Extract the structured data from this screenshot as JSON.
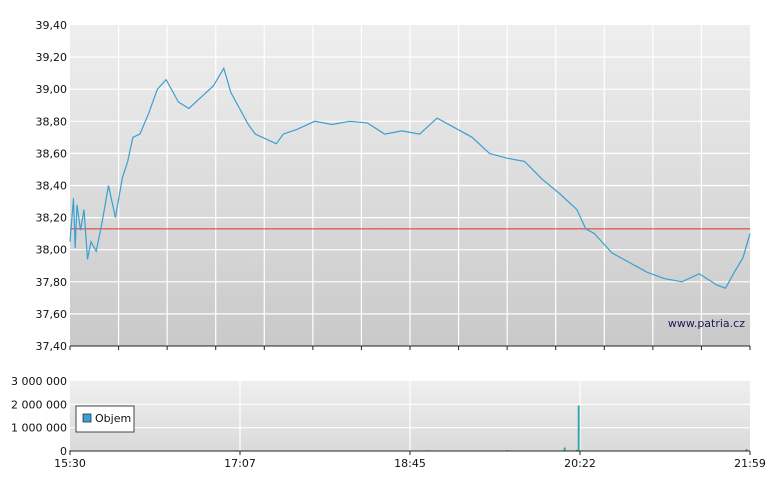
{
  "watermark": "www.patria.cz",
  "chart_data": [
    {
      "type": "line",
      "title": "",
      "xlabel": "",
      "ylabel": "",
      "ylim": [
        37.4,
        39.4
      ],
      "y_ticks": [
        "39,40",
        "39,20",
        "39,00",
        "38,80",
        "38,60",
        "38,40",
        "38,20",
        "38,00",
        "37,80",
        "37,60",
        "37,40"
      ],
      "x_ticks": [
        "15:30",
        "17:07",
        "18:45",
        "20:22",
        "21:59"
      ],
      "grid": true,
      "line_color": "#3aa0d0",
      "reference_line": {
        "value": 38.13,
        "color": "#e03030"
      },
      "x": [
        "15:30",
        "15:32",
        "15:33",
        "15:34",
        "15:36",
        "15:38",
        "15:40",
        "15:42",
        "15:45",
        "15:48",
        "15:52",
        "15:56",
        "16:00",
        "16:03",
        "16:06",
        "16:10",
        "16:15",
        "16:20",
        "16:25",
        "16:32",
        "16:38",
        "16:45",
        "16:52",
        "16:58",
        "17:02",
        "17:07",
        "17:12",
        "17:16",
        "17:20",
        "17:24",
        "17:28",
        "17:32",
        "17:40",
        "17:50",
        "18:00",
        "18:10",
        "18:20",
        "18:30",
        "18:40",
        "18:50",
        "19:00",
        "19:10",
        "19:20",
        "19:30",
        "19:40",
        "19:50",
        "20:00",
        "20:10",
        "20:20",
        "20:25",
        "20:30",
        "20:40",
        "20:50",
        "21:00",
        "21:10",
        "21:20",
        "21:30",
        "21:40",
        "21:45",
        "21:50",
        "21:55",
        "21:59"
      ],
      "series": [
        {
          "values": [
            38.05,
            38.32,
            38.01,
            38.28,
            38.12,
            38.25,
            37.94,
            38.05,
            37.99,
            38.15,
            38.4,
            38.2,
            38.45,
            38.55,
            38.7,
            38.72,
            38.85,
            39.0,
            39.06,
            38.92,
            38.88,
            38.95,
            39.02,
            39.13,
            38.98,
            38.88,
            38.78,
            38.72,
            38.7,
            38.68,
            38.66,
            38.72,
            38.75,
            38.8,
            38.78,
            38.8,
            38.79,
            38.72,
            38.74,
            38.72,
            38.82,
            38.76,
            38.7,
            38.6,
            38.57,
            38.55,
            38.44,
            38.35,
            38.25,
            38.13,
            38.1,
            37.98,
            37.92,
            37.86,
            37.82,
            37.8,
            37.85,
            37.78,
            37.76,
            37.86,
            37.95,
            38.1
          ]
        }
      ]
    },
    {
      "type": "bar",
      "xlabel": "",
      "ylabel": "",
      "ylim": [
        0,
        3000000
      ],
      "y_ticks": [
        "3 000 000",
        "2 000 000",
        "1 000 000",
        "0"
      ],
      "x_ticks": [
        "15:30",
        "17:07",
        "18:45",
        "20:22",
        "21:59"
      ],
      "legend": "Objem",
      "legend_color": "#3a9fd6",
      "bar_color": "#3aa6a8",
      "x": [
        "15:30",
        "16:02",
        "17:05",
        "17:35",
        "18:35",
        "18:55",
        "19:40",
        "20:00",
        "20:13",
        "20:20",
        "20:21",
        "21:57"
      ],
      "values": [
        30000,
        20000,
        25000,
        15000,
        20000,
        30000,
        35000,
        15000,
        150000,
        50000,
        1950000,
        80000
      ]
    }
  ]
}
